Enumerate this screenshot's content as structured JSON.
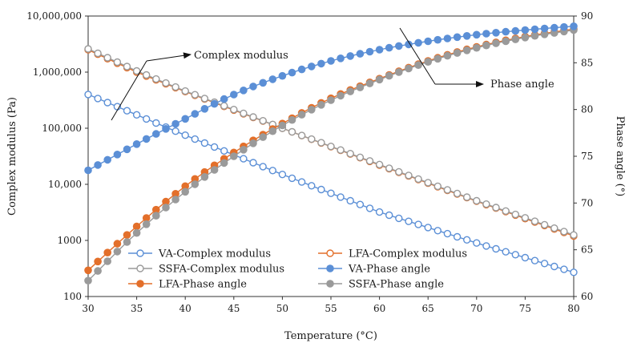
{
  "chart_data": {
    "type": "line",
    "x": {
      "label": "Temperature (°C)",
      "range": [
        30,
        80
      ],
      "ticks": [
        30,
        35,
        40,
        45,
        50,
        55,
        60,
        65,
        70,
        75,
        80
      ],
      "tick_labels": [
        "30",
        "35",
        "40",
        "45",
        "50",
        "55",
        "60",
        "65",
        "70",
        "75",
        "80"
      ]
    },
    "y_left": {
      "label": "Complex modulus (Pa)",
      "scale": "log",
      "range": [
        100,
        10000000
      ],
      "ticks": [
        100,
        1000,
        10000,
        100000,
        1000000,
        10000000
      ],
      "tick_labels": [
        "100",
        "1000",
        "10,000",
        "100,000",
        "1,000,000",
        "10,000,000"
      ]
    },
    "y_right": {
      "label": "Phase angle (°)",
      "scale": "linear",
      "range": [
        60,
        90
      ],
      "ticks": [
        60,
        65,
        70,
        75,
        80,
        85,
        90
      ],
      "tick_labels": [
        "60",
        "65",
        "70",
        "75",
        "80",
        "85",
        "90"
      ]
    },
    "series": [
      {
        "name": "VA-Complex modulus",
        "axis": "left",
        "marker": "open",
        "color": "#5b8fd6",
        "points": [
          [
            30,
            400000
          ],
          [
            40,
            75000
          ],
          [
            50,
            15000
          ],
          [
            60,
            3200
          ],
          [
            70,
            900
          ],
          [
            80,
            270
          ]
        ]
      },
      {
        "name": "LFA-Complex modulus",
        "axis": "left",
        "marker": "open",
        "color": "#e36f2a",
        "points": [
          [
            30,
            2500000
          ],
          [
            35,
            1000000
          ],
          [
            40,
            450000
          ],
          [
            45,
            210000
          ],
          [
            50,
            100000
          ],
          [
            60,
            22000
          ],
          [
            70,
            5000
          ],
          [
            80,
            1200
          ]
        ]
      },
      {
        "name": "SSFA-Complex modulus",
        "axis": "left",
        "marker": "open",
        "color": "#9a9a9a",
        "points": [
          [
            30,
            2600000
          ],
          [
            35,
            1050000
          ],
          [
            40,
            460000
          ],
          [
            45,
            215000
          ],
          [
            50,
            100000
          ],
          [
            60,
            22500
          ],
          [
            70,
            5100
          ],
          [
            80,
            1250
          ]
        ]
      },
      {
        "name": "VA-Phase angle",
        "axis": "right",
        "marker": "filled",
        "color": "#5b8fd6",
        "points": [
          [
            30,
            73.5
          ],
          [
            35,
            76.3
          ],
          [
            40,
            79.0
          ],
          [
            45,
            81.6
          ],
          [
            50,
            83.6
          ],
          [
            55,
            85.2
          ],
          [
            60,
            86.4
          ],
          [
            65,
            87.3
          ],
          [
            70,
            88.0
          ],
          [
            75,
            88.5
          ],
          [
            80,
            88.9
          ]
        ]
      },
      {
        "name": "LFA-Phase angle",
        "axis": "right",
        "marker": "filled",
        "color": "#e36f2a",
        "points": [
          [
            30,
            62.8
          ],
          [
            35,
            67.5
          ],
          [
            40,
            71.8
          ],
          [
            45,
            75.4
          ],
          [
            50,
            78.5
          ],
          [
            55,
            81.2
          ],
          [
            60,
            83.3
          ],
          [
            65,
            85.2
          ],
          [
            70,
            86.7
          ],
          [
            75,
            87.8
          ],
          [
            80,
            88.6
          ]
        ]
      },
      {
        "name": "SSFA-Phase angle",
        "axis": "right",
        "marker": "filled",
        "color": "#9a9a9a",
        "points": [
          [
            30,
            61.7
          ],
          [
            35,
            66.8
          ],
          [
            40,
            71.2
          ],
          [
            45,
            75.0
          ],
          [
            50,
            78.3
          ],
          [
            55,
            81.0
          ],
          [
            60,
            83.2
          ],
          [
            65,
            85.1
          ],
          [
            70,
            86.6
          ],
          [
            75,
            87.7
          ],
          [
            80,
            88.5
          ]
        ]
      }
    ],
    "legend": {
      "placement": "bottom-left",
      "items": [
        "VA-Complex modulus",
        "LFA-Complex modulus",
        "SSFA-Complex modulus",
        "VA-Phase angle",
        "LFA-Phase angle",
        "SSFA-Phase angle"
      ]
    },
    "annotations": {
      "complex_modulus": "Complex modulus",
      "phase_angle": "Phase angle"
    }
  }
}
